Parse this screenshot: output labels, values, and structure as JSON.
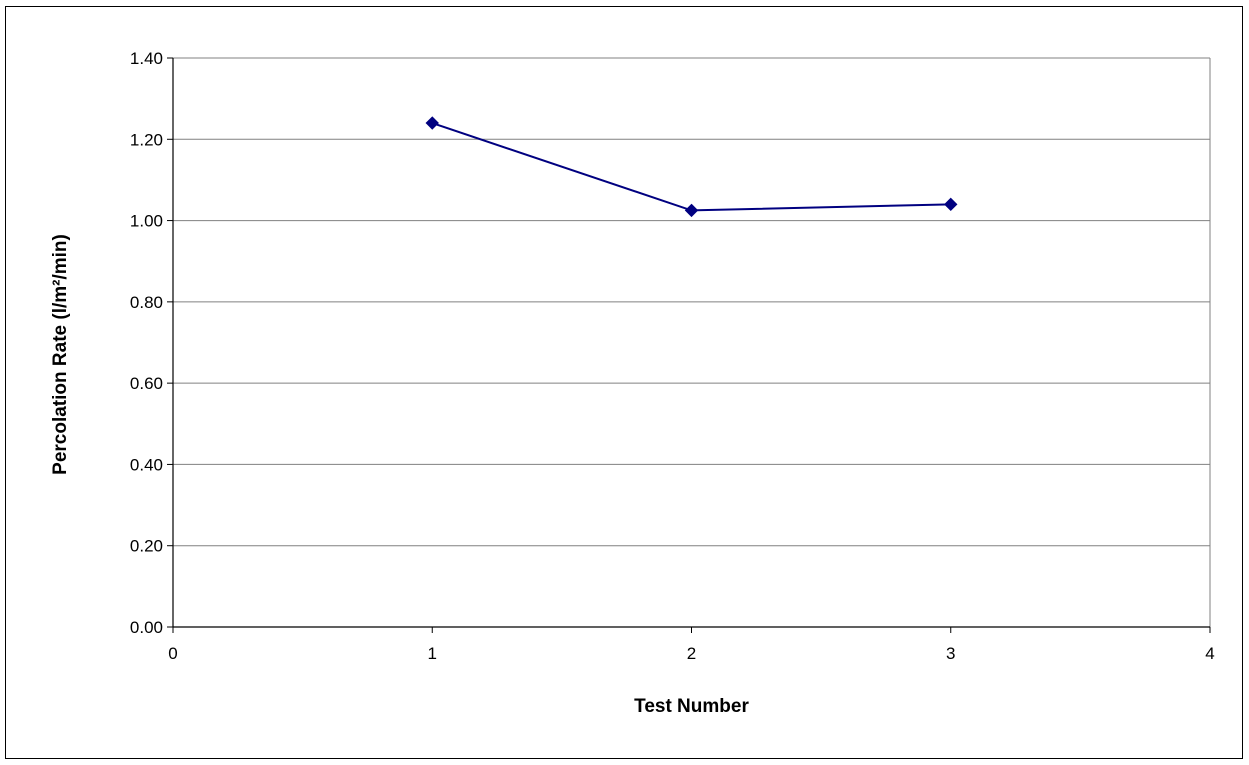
{
  "chart_data": {
    "type": "line",
    "title": "",
    "xlabel": "Test Number",
    "ylabel": "Percolation Rate (l/m²/min)",
    "xlim": [
      0,
      4
    ],
    "ylim": [
      0,
      1.4
    ],
    "xticks": [
      0,
      1,
      2,
      3,
      4
    ],
    "xtick_labels": [
      "0",
      "1",
      "2",
      "3",
      "4"
    ],
    "yticks": [
      0,
      0.2,
      0.4,
      0.6,
      0.8,
      1.0,
      1.2,
      1.4
    ],
    "ytick_labels": [
      "0.00",
      "0.20",
      "0.40",
      "0.60",
      "0.80",
      "1.00",
      "1.20",
      "1.40"
    ],
    "grid": "horizontal major gridlines",
    "legend": "none",
    "series": [
      {
        "x": [
          1,
          2,
          3
        ],
        "y": [
          1.24,
          1.025,
          1.04
        ],
        "color": "#000080",
        "marker": "diamond"
      }
    ]
  }
}
